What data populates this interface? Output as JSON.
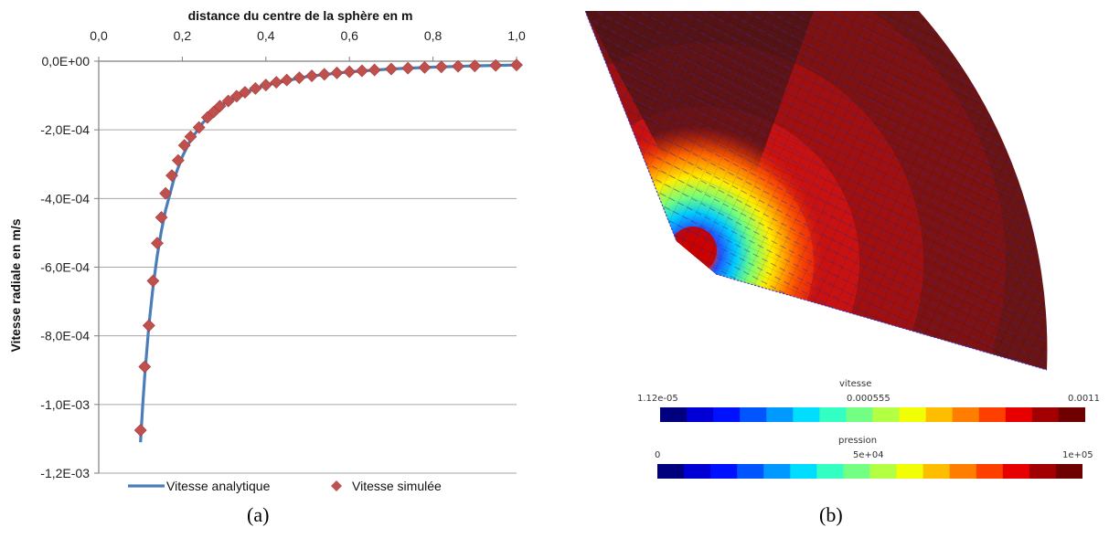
{
  "chart_data": [
    {
      "type": "line+scatter",
      "xlabel": "distance du centre de la sphère en m",
      "ylabel": "Vitesse radiale en m/s",
      "x_axis_position": "top",
      "xlim": [
        0,
        1.0
      ],
      "ylim": [
        -0.0012,
        0
      ],
      "x_ticks": [
        "0,0",
        "0,2",
        "0,4",
        "0,6",
        "0,8",
        "1,0"
      ],
      "y_ticks": [
        "0,0E+00",
        "-2,0E-04",
        "-4,0E-04",
        "-6,0E-04",
        "-8,0E-04",
        "-1,0E-03",
        "-1,2E-03"
      ],
      "grid": "horizontal",
      "legend_position": "bottom",
      "series": [
        {
          "name": "Vitesse analytique",
          "type": "line",
          "color": "#4a7ebb",
          "x": [
            0.1,
            0.105,
            0.11,
            0.12,
            0.13,
            0.14,
            0.15,
            0.16,
            0.18,
            0.2,
            0.22,
            0.25,
            0.3,
            0.35,
            0.4,
            0.5,
            0.6,
            0.7,
            0.8,
            0.9,
            1.0
          ],
          "y": [
            -0.00111,
            -0.001006,
            -0.000917,
            -0.000771,
            -0.000657,
            -0.000566,
            -0.000493,
            -0.000434,
            -0.000343,
            -0.000278,
            -0.000229,
            -0.000178,
            -0.000123,
            -9.06e-05,
            -6.94e-05,
            -4.44e-05,
            -3.08e-05,
            -2.27e-05,
            -1.74e-05,
            -1.37e-05,
            -1.11e-05
          ]
        },
        {
          "name": "Vitesse simulée",
          "type": "scatter",
          "color": "#c0504d",
          "marker": "diamond",
          "x": [
            0.1,
            0.11,
            0.12,
            0.13,
            0.14,
            0.15,
            0.16,
            0.175,
            0.19,
            0.205,
            0.22,
            0.24,
            0.26,
            0.275,
            0.29,
            0.31,
            0.33,
            0.35,
            0.375,
            0.4,
            0.425,
            0.45,
            0.48,
            0.51,
            0.54,
            0.57,
            0.6,
            0.63,
            0.66,
            0.7,
            0.74,
            0.78,
            0.82,
            0.86,
            0.9,
            0.95,
            1.0
          ],
          "y": [
            -0.001075,
            -0.00089,
            -0.00077,
            -0.00064,
            -0.00053,
            -0.000455,
            -0.000385,
            -0.000333,
            -0.000289,
            -0.000245,
            -0.00022,
            -0.000193,
            -0.000164,
            -0.000148,
            -0.000131,
            -0.000116,
            -0.000102,
            -9.06e-05,
            -7.94e-05,
            -6.94e-05,
            -6.15e-05,
            -5.49e-05,
            -4.82e-05,
            -4.27e-05,
            -3.81e-05,
            -3.42e-05,
            -3.08e-05,
            -2.8e-05,
            -2.55e-05,
            -2.27e-05,
            -2.03e-05,
            -1.82e-05,
            -1.65e-05,
            -1.5e-05,
            -1.37e-05,
            -1.23e-05,
            -1.11e-05
          ]
        }
      ]
    },
    {
      "type": "heatmap",
      "colorbars": [
        {
          "name": "vitesse",
          "min_label": "1.12e-05",
          "mid_label": "0.000555",
          "max_label": "0.0011"
        },
        {
          "name": "pression",
          "min_label": "0",
          "mid_label": "5e+04",
          "max_label": "1e+05"
        }
      ],
      "colormap": [
        "#00007f",
        "#0000d6",
        "#0011ff",
        "#0055ff",
        "#0099ff",
        "#00ddfe",
        "#33ffc3",
        "#73ff83",
        "#b3ff43",
        "#f2ff04",
        "#ffbd00",
        "#ff7e00",
        "#ff3f00",
        "#e60000",
        "#a20000",
        "#6e0000"
      ]
    }
  ],
  "captions": {
    "a": "(a)",
    "b": "(b)"
  }
}
